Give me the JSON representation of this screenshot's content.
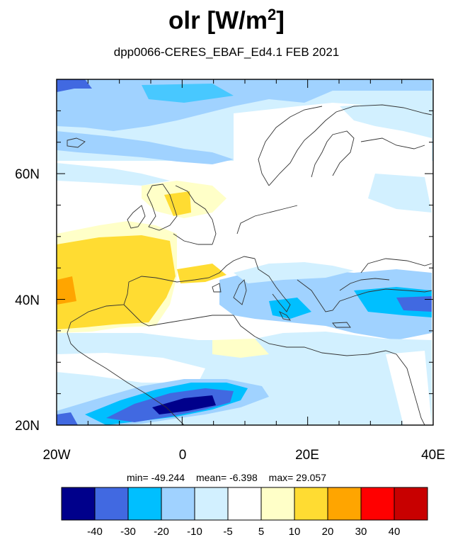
{
  "title": {
    "main": "olr [W/m",
    "sup": "2",
    "end": "]"
  },
  "subtitle": "dpp0066-CERES_EBAF_Ed4.1  FEB 2021",
  "axes": {
    "lat_ticks": [
      "20N",
      "40N",
      "60N"
    ],
    "lon_ticks": [
      "20W",
      "0",
      "20E",
      "40E"
    ],
    "lat_range": [
      20,
      75
    ],
    "lon_range": [
      -20,
      40
    ]
  },
  "stats": {
    "min": "min= -49.244",
    "mean": "mean=  -6.398",
    "max": "max= 29.057"
  },
  "colorbar": {
    "colors": [
      "#00008b",
      "#4169e1",
      "#00bfff",
      "#a0d2ff",
      "#d2f0ff",
      "#ffffff",
      "#ffffc8",
      "#ffdc32",
      "#ffa500",
      "#ff0000",
      "#c80000"
    ],
    "labels": [
      "-40",
      "-30",
      "-20",
      "-10",
      "-5",
      "5",
      "10",
      "20",
      "30",
      "40"
    ]
  }
}
